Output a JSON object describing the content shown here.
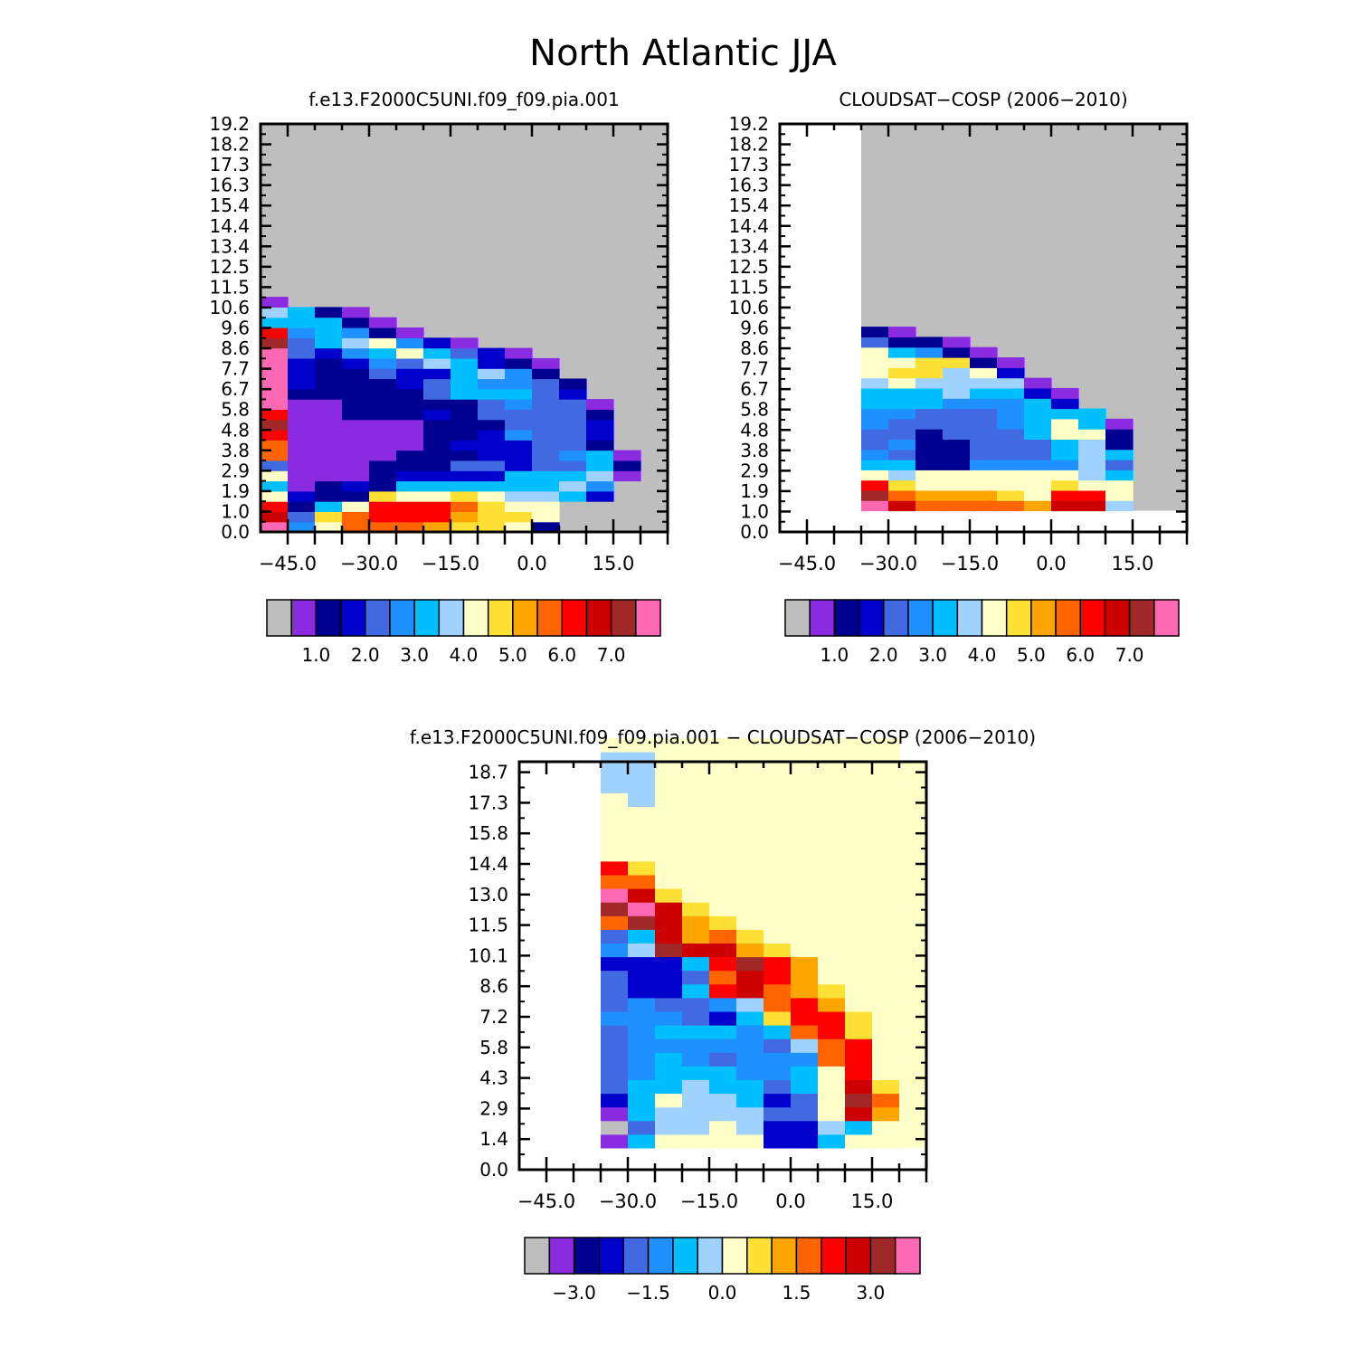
{
  "figure": {
    "title": "North Atlantic JJA"
  },
  "palette": [
    "#bebebe",
    "#8a2be2",
    "#000090",
    "#0000cd",
    "#4169e1",
    "#1e90ff",
    "#00bfff",
    "#a0d2ff",
    "#ffffc8",
    "#ffe135",
    "#ffa500",
    "#ff6400",
    "#ff0000",
    "#cd0000",
    "#a02828",
    "#ff69b4"
  ],
  "chart_data": [
    {
      "id": "model",
      "type": "heatmap",
      "title": "f.e13.F2000C5UNI.f09_f09.pia.001",
      "xlabel": "",
      "ylabel": "",
      "x_ticks": [
        -45,
        -30,
        -15,
        0,
        15
      ],
      "x_tick_labels": [
        "−45.0",
        "−30.0",
        "−15.0",
        "0.0",
        "15.0"
      ],
      "y_ticks": [
        "0.0",
        "1.0",
        "1.9",
        "2.9",
        "3.8",
        "4.8",
        "5.8",
        "6.7",
        "7.7",
        "8.6",
        "9.6",
        "10.6",
        "11.5",
        "12.5",
        "13.4",
        "14.4",
        "15.4",
        "16.3",
        "17.3",
        "18.2",
        "19.2"
      ],
      "x_bin_edges": [
        -50,
        -45,
        -40,
        -35,
        -30,
        -25,
        -20,
        -15,
        -10,
        -5,
        0,
        5,
        10,
        15,
        20
      ],
      "data_note": "color class index per cell (0 = missing/gray, 1..15 = colorbar classes); rows from bottom",
      "grid": [
        [
          15,
          5,
          8,
          11,
          11,
          11,
          10,
          9,
          9,
          8,
          2,
          0,
          0,
          0
        ],
        [
          13,
          4,
          9,
          11,
          12,
          12,
          12,
          10,
          9,
          9,
          8,
          0,
          0,
          0
        ],
        [
          12,
          2,
          6,
          8,
          12,
          12,
          12,
          11,
          9,
          8,
          8,
          0,
          0,
          0
        ],
        [
          8,
          3,
          2,
          2,
          9,
          8,
          8,
          9,
          8,
          7,
          7,
          6,
          3,
          0
        ],
        [
          6,
          1,
          2,
          3,
          2,
          6,
          6,
          6,
          6,
          6,
          6,
          7,
          5,
          0
        ],
        [
          8,
          1,
          1,
          1,
          2,
          3,
          3,
          3,
          3,
          6,
          6,
          6,
          7,
          1
        ],
        [
          4,
          1,
          1,
          1,
          2,
          2,
          2,
          4,
          4,
          3,
          4,
          4,
          6,
          2
        ],
        [
          11,
          1,
          1,
          1,
          1,
          2,
          2,
          2,
          3,
          3,
          4,
          5,
          6,
          1
        ],
        [
          11,
          1,
          1,
          1,
          1,
          1,
          2,
          3,
          3,
          3,
          4,
          4,
          2,
          0
        ],
        [
          12,
          1,
          1,
          1,
          1,
          1,
          2,
          2,
          3,
          5,
          4,
          4,
          3,
          0
        ],
        [
          14,
          1,
          1,
          1,
          1,
          1,
          2,
          2,
          2,
          4,
          4,
          4,
          3,
          0
        ],
        [
          12,
          1,
          1,
          2,
          2,
          2,
          3,
          2,
          4,
          4,
          4,
          4,
          2,
          0
        ],
        [
          15,
          1,
          1,
          2,
          2,
          2,
          2,
          2,
          4,
          5,
          4,
          4,
          1,
          0
        ],
        [
          15,
          2,
          2,
          2,
          2,
          2,
          4,
          6,
          6,
          6,
          4,
          3,
          0,
          0
        ],
        [
          15,
          3,
          2,
          2,
          2,
          3,
          4,
          6,
          5,
          5,
          4,
          2,
          0,
          0
        ],
        [
          15,
          3,
          2,
          2,
          4,
          3,
          3,
          6,
          7,
          5,
          2,
          0,
          0,
          0
        ],
        [
          15,
          3,
          2,
          3,
          5,
          4,
          7,
          6,
          3,
          2,
          1,
          0,
          0,
          0
        ],
        [
          15,
          4,
          3,
          5,
          6,
          8,
          6,
          4,
          3,
          1,
          0,
          0,
          0,
          0
        ],
        [
          14,
          4,
          6,
          7,
          8,
          5,
          3,
          1,
          0,
          0,
          0,
          0,
          0,
          0
        ],
        [
          12,
          5,
          6,
          5,
          2,
          1,
          0,
          0,
          0,
          0,
          0,
          0,
          0,
          0
        ],
        [
          6,
          6,
          6,
          2,
          1,
          0,
          0,
          0,
          0,
          0,
          0,
          0,
          0,
          0
        ],
        [
          7,
          6,
          2,
          1,
          0,
          0,
          0,
          0,
          0,
          0,
          0,
          0,
          0,
          0
        ],
        [
          1,
          0,
          0,
          0,
          0,
          0,
          0,
          0,
          0,
          0,
          0,
          0,
          0,
          0
        ]
      ],
      "colorbar_labels": [
        "1.0",
        "2.0",
        "3.0",
        "4.0",
        "5.0",
        "6.0",
        "7.0"
      ]
    },
    {
      "id": "obs",
      "type": "heatmap",
      "title": "CLOUDSAT−COSP (2006−2010)",
      "xlabel": "",
      "ylabel": "",
      "x_ticks": [
        -45,
        -30,
        -15,
        0,
        15
      ],
      "x_tick_labels": [
        "−45.0",
        "−30.0",
        "−15.0",
        "0.0",
        "15.0"
      ],
      "y_ticks": [
        "0.0",
        "1.0",
        "1.9",
        "2.9",
        "3.8",
        "4.8",
        "5.8",
        "6.7",
        "7.7",
        "8.6",
        "9.6",
        "10.6",
        "11.5",
        "12.5",
        "13.4",
        "14.4",
        "15.4",
        "16.3",
        "17.3",
        "18.2",
        "19.2"
      ],
      "x_bin_edges": [
        -35,
        -30,
        -25,
        -20,
        -15,
        -10,
        -5,
        0,
        5,
        10,
        15,
        20
      ],
      "data_note": "color class index per cell (0 = missing/gray, 1..15 = colorbar classes); rows from bottom starting at 1.0",
      "grid": [
        [
          15,
          13,
          11,
          11,
          11,
          11,
          10,
          13,
          13,
          7,
          0
        ],
        [
          14,
          11,
          10,
          10,
          10,
          9,
          8,
          12,
          12,
          8,
          0
        ],
        [
          12,
          9,
          8,
          8,
          8,
          8,
          8,
          9,
          8,
          8,
          0
        ],
        [
          8,
          7,
          8,
          8,
          8,
          8,
          8,
          8,
          7,
          6,
          0
        ],
        [
          6,
          6,
          2,
          2,
          5,
          5,
          5,
          5,
          7,
          4,
          0
        ],
        [
          5,
          4,
          2,
          2,
          4,
          4,
          4,
          6,
          7,
          6,
          0
        ],
        [
          4,
          5,
          2,
          2,
          4,
          4,
          4,
          6,
          7,
          2,
          0
        ],
        [
          4,
          4,
          2,
          4,
          4,
          4,
          6,
          8,
          8,
          2,
          0
        ],
        [
          5,
          4,
          4,
          4,
          4,
          5,
          6,
          8,
          6,
          1,
          0
        ],
        [
          5,
          5,
          4,
          4,
          4,
          5,
          6,
          6,
          6,
          0,
          0
        ],
        [
          6,
          6,
          6,
          5,
          5,
          5,
          6,
          3,
          0,
          0,
          0
        ],
        [
          6,
          6,
          6,
          7,
          6,
          6,
          3,
          1,
          0,
          0,
          0
        ],
        [
          7,
          8,
          7,
          7,
          7,
          7,
          1,
          0,
          0,
          0,
          0
        ],
        [
          8,
          9,
          9,
          7,
          8,
          3,
          0,
          0,
          0,
          0,
          0
        ],
        [
          8,
          8,
          9,
          9,
          2,
          1,
          0,
          0,
          0,
          0,
          0
        ],
        [
          8,
          6,
          5,
          2,
          1,
          0,
          0,
          0,
          0,
          0,
          0
        ],
        [
          4,
          2,
          2,
          1,
          0,
          0,
          0,
          0,
          0,
          0,
          0
        ],
        [
          2,
          1,
          0,
          0,
          0,
          0,
          0,
          0,
          0,
          0,
          0
        ]
      ],
      "colorbar_labels": [
        "1.0",
        "2.0",
        "3.0",
        "4.0",
        "5.0",
        "6.0",
        "7.0"
      ]
    },
    {
      "id": "diff",
      "type": "heatmap",
      "title": "f.e13.F2000C5UNI.f09_f09.pia.001 − CLOUDSAT−COSP (2006−2010)",
      "xlabel": "",
      "ylabel": "",
      "x_ticks": [
        -45,
        -30,
        -15,
        0,
        15
      ],
      "x_tick_labels": [
        "−45.0",
        "−30.0",
        "−15.0",
        "0.0",
        "15.0"
      ],
      "y_ticks": [
        "0.0",
        "1.4",
        "2.9",
        "4.3",
        "5.8",
        "7.2",
        "8.6",
        "10.1",
        "11.5",
        "13.0",
        "14.4",
        "15.8",
        "17.3",
        "18.7"
      ],
      "x_bin_edges": [
        -35,
        -30,
        -25,
        -20,
        -15,
        -10,
        -5,
        0,
        5,
        10,
        15,
        20
      ],
      "data_note": "color class index per cell (0 = missing/gray, 1..15 = colorbar classes); rows from bottom starting at 1.0",
      "grid": [
        [
          1,
          6,
          8,
          8,
          8,
          8,
          3,
          3,
          6,
          8,
          8
        ],
        [
          0,
          4,
          7,
          7,
          8,
          7,
          3,
          3,
          7,
          6,
          8
        ],
        [
          1,
          6,
          7,
          7,
          7,
          7,
          4,
          4,
          8,
          13,
          10
        ],
        [
          3,
          6,
          8,
          7,
          7,
          6,
          3,
          4,
          8,
          14,
          11
        ],
        [
          4,
          6,
          6,
          7,
          6,
          6,
          4,
          6,
          8,
          13,
          9
        ],
        [
          4,
          5,
          6,
          6,
          6,
          5,
          5,
          6,
          8,
          12,
          8
        ],
        [
          4,
          5,
          6,
          5,
          4,
          5,
          5,
          5,
          11,
          12,
          8
        ],
        [
          4,
          5,
          5,
          5,
          5,
          5,
          4,
          7,
          11,
          12,
          8
        ],
        [
          4,
          5,
          6,
          6,
          6,
          5,
          6,
          11,
          12,
          9,
          8
        ],
        [
          5,
          5,
          5,
          4,
          3,
          6,
          9,
          12,
          12,
          9,
          8
        ],
        [
          4,
          5,
          4,
          4,
          5,
          7,
          11,
          12,
          10,
          8,
          8
        ],
        [
          4,
          3,
          3,
          6,
          12,
          13,
          11,
          10,
          9,
          8,
          8
        ],
        [
          4,
          3,
          3,
          4,
          11,
          13,
          12,
          10,
          8,
          8,
          8
        ],
        [
          3,
          3,
          3,
          6,
          12,
          14,
          12,
          10,
          8,
          8,
          8
        ],
        [
          5,
          7,
          14,
          13,
          13,
          10,
          9,
          8,
          8,
          8,
          8
        ],
        [
          4,
          6,
          13,
          10,
          11,
          9,
          8,
          8,
          8,
          8,
          8
        ],
        [
          11,
          14,
          13,
          10,
          9,
          8,
          8,
          8,
          8,
          8,
          8
        ],
        [
          14,
          15,
          13,
          9,
          8,
          8,
          8,
          8,
          8,
          8,
          8
        ],
        [
          15,
          13,
          9,
          8,
          8,
          8,
          8,
          8,
          8,
          8,
          8
        ],
        [
          11,
          11,
          8,
          8,
          8,
          8,
          8,
          8,
          8,
          8,
          8
        ],
        [
          12,
          9,
          8,
          8,
          8,
          8,
          8,
          8,
          8,
          8,
          8
        ],
        [
          8,
          8,
          8,
          8,
          8,
          8,
          8,
          8,
          8,
          8,
          8
        ],
        [
          8,
          8,
          8,
          8,
          8,
          8,
          8,
          8,
          8,
          8,
          8
        ],
        [
          8,
          8,
          8,
          8,
          8,
          8,
          8,
          8,
          8,
          8,
          8
        ],
        [
          8,
          8,
          8,
          8,
          8,
          8,
          8,
          8,
          8,
          8,
          8
        ],
        [
          8,
          7,
          8,
          8,
          8,
          8,
          8,
          8,
          8,
          8,
          8
        ],
        [
          7,
          7,
          8,
          8,
          8,
          8,
          8,
          8,
          8,
          8,
          8
        ],
        [
          7,
          7,
          8,
          8,
          8,
          8,
          8,
          8,
          8,
          8,
          8
        ],
        [
          7,
          7,
          8,
          8,
          8,
          8,
          8,
          8,
          8,
          8,
          8
        ],
        [
          8,
          8,
          8,
          8,
          8,
          8,
          8,
          8,
          8,
          8,
          8
        ]
      ],
      "colorbar_labels": [
        "−3.0",
        "−1.5",
        "0.0",
        "1.5",
        "3.0"
      ]
    }
  ]
}
